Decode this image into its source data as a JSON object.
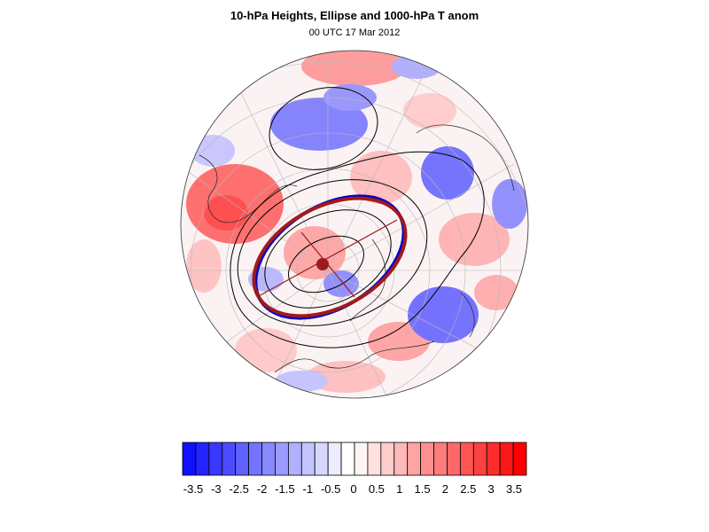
{
  "figure": {
    "title": "10-hPa Heights, Ellipse and 1000-hPa T anom",
    "subtitle": "00 UTC 17 Mar 2012"
  },
  "colorbar": {
    "labels": [
      "-3.5",
      "-3",
      "-2.5",
      "-2",
      "-1.5",
      "-1",
      "-0.5",
      "0",
      "0.5",
      "1",
      "1.5",
      "2",
      "2.5",
      "3",
      "3.5"
    ],
    "colors": [
      "#1010ff",
      "#2424ff",
      "#3838ff",
      "#4c4cff",
      "#6060ff",
      "#7474ff",
      "#8888ff",
      "#9c9cff",
      "#b0b0ff",
      "#c4c4ff",
      "#d8d8ff",
      "#ececff",
      "#ffffff",
      "#fff4f4",
      "#ffe0e0",
      "#ffcccc",
      "#ffb8b8",
      "#ffa4a4",
      "#ff9090",
      "#ff7c7c",
      "#ff6868",
      "#ff5454",
      "#ff4040",
      "#ff2c2c",
      "#ff1818",
      "#ff0000"
    ]
  },
  "colors": {
    "observed_ellipse": "#0000cc",
    "fitted_ellipse": "#a01a1a",
    "contour": "#000000",
    "warm_anomaly": "#ff3030",
    "cold_anomaly": "#3a3aff"
  }
}
